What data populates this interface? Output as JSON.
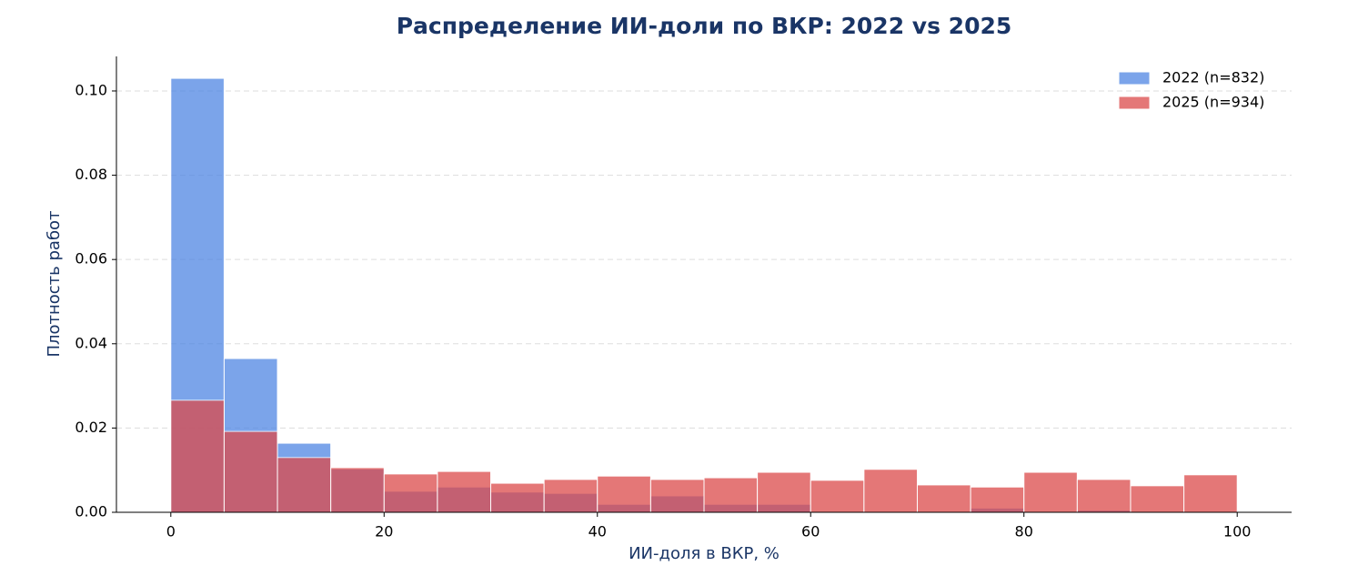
{
  "chart_data": {
    "type": "histogram",
    "title": "Распределение ИИ-доли по ВКР: 2022 vs 2025",
    "x_label": "ИИ-доля в ВКР, %",
    "y_label": "Плотность работ",
    "bins": [
      0,
      5,
      10,
      15,
      20,
      25,
      30,
      35,
      40,
      45,
      50,
      55,
      60,
      65,
      70,
      75,
      80,
      85,
      90,
      95,
      100
    ],
    "series": [
      {
        "name": "2022 (n=832)",
        "color": "#4f86e3",
        "values": [
          0.103,
          0.0365,
          0.0164,
          0.0103,
          0.005,
          0.006,
          0.0048,
          0.0045,
          0.0019,
          0.0039,
          0.0019,
          0.0019,
          0,
          0,
          0,
          0.001,
          0,
          0.0005,
          0,
          0
        ]
      },
      {
        "name": "2025 (n=934)",
        "color": "#dc4a4a",
        "values": [
          0.0266,
          0.0192,
          0.013,
          0.0106,
          0.0091,
          0.0097,
          0.0069,
          0.0078,
          0.0086,
          0.0078,
          0.0082,
          0.0095,
          0.0076,
          0.0102,
          0.0065,
          0.006,
          0.0095,
          0.0078,
          0.0063,
          0.0089
        ]
      }
    ],
    "xlim": [
      -5.1,
      105.1
    ],
    "xticks": [
      0,
      20,
      40,
      60,
      80,
      100
    ],
    "ylim": [
      0,
      0.1082
    ],
    "yticks": [
      {
        "value": 0,
        "label": "0.00"
      },
      {
        "value": 0.02,
        "label": "0.02"
      },
      {
        "value": 0.04,
        "label": "0.04"
      },
      {
        "value": 0.06,
        "label": "0.06"
      },
      {
        "value": 0.08,
        "label": "0.08"
      },
      {
        "value": 0.1,
        "label": "0.10"
      }
    ],
    "grid": true,
    "legend": "upper right"
  }
}
